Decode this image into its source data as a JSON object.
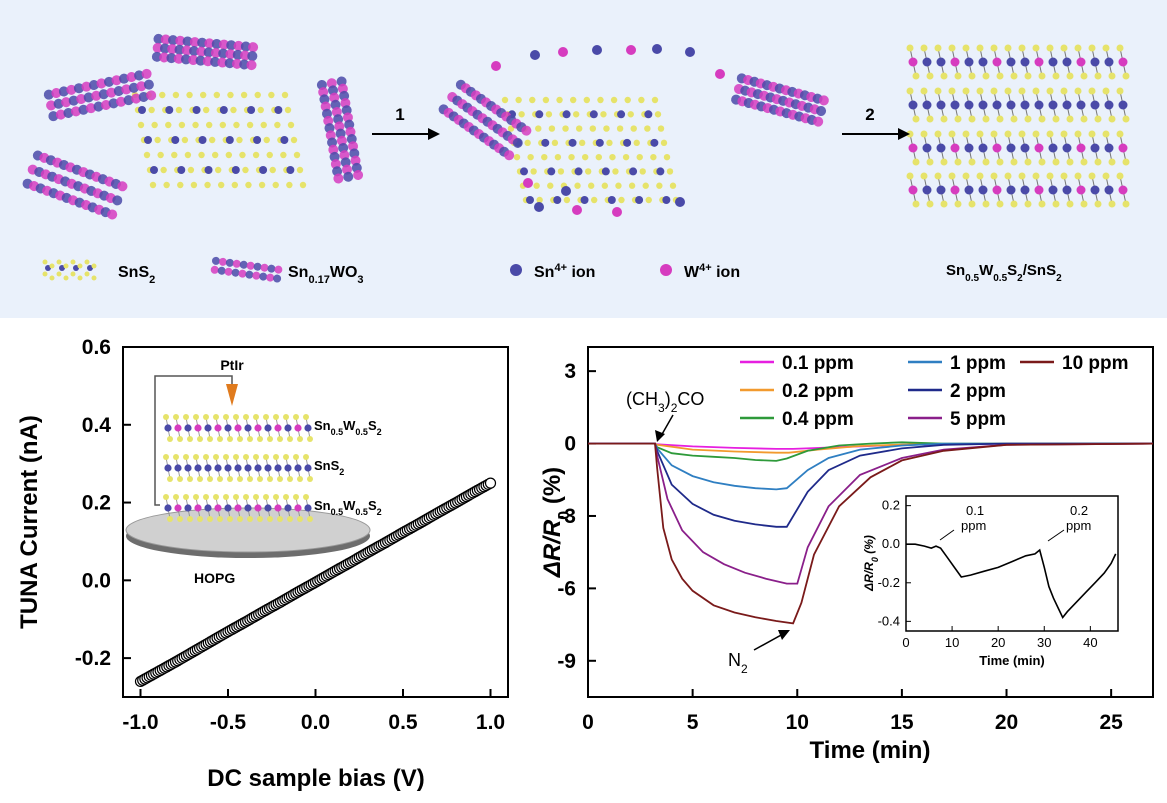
{
  "schematic": {
    "step1": "1",
    "step2": "2",
    "legend_sns2": "SnS2",
    "legend_snwo": "Sn0.17WO3",
    "legend_sn_ion": "Sn4+ ion",
    "legend_w_ion": "W4+ ion",
    "legend_product": "Sn0.5W0.5S2/SnS2",
    "colors": {
      "yellow": "#e6e36a",
      "blue": "#4a4aa8",
      "magenta": "#d63cbf",
      "grey": "#8a8a8a"
    }
  },
  "chart_data": [
    {
      "type": "scatter",
      "title": "",
      "xlabel": "DC sample bias (V)",
      "ylabel": "TUNA Current  (nA)",
      "xlim": [
        -1.1,
        1.1
      ],
      "ylim": [
        -0.3,
        0.6
      ],
      "xticks": [
        "-1.0",
        "-0.5",
        "0.0",
        "0.5",
        "1.0"
      ],
      "yticks": [
        "-0.2",
        "0.0",
        "0.2",
        "0.4",
        "0.6"
      ],
      "series": [
        {
          "x": [
            -1.0,
            -0.9,
            -0.8,
            -0.7,
            -0.6,
            -0.5,
            -0.4,
            -0.3,
            -0.2,
            -0.1,
            0.0,
            0.1,
            0.2,
            0.3,
            0.4,
            0.5,
            0.6,
            0.7,
            0.8,
            0.9,
            1.0
          ],
          "y": [
            -0.26,
            -0.235,
            -0.21,
            -0.184,
            -0.158,
            -0.132,
            -0.107,
            -0.081,
            -0.056,
            -0.03,
            -0.005,
            0.021,
            0.046,
            0.072,
            0.097,
            0.123,
            0.148,
            0.174,
            0.199,
            0.225,
            0.25
          ]
        }
      ],
      "inset": {
        "tip_label": "PtIr",
        "layer_top": "Sn0.5W0.5S2",
        "layer_mid": "SnS2",
        "layer_bot": "Sn0.5W0.5S2",
        "substrate": "HOPG"
      }
    },
    {
      "type": "line",
      "title": "",
      "xlabel": "Time (min)",
      "ylabel": "ΔR/R0 (%)",
      "xlim": [
        0,
        27
      ],
      "ylim": [
        -10.5,
        4
      ],
      "xticks": [
        "0",
        "5",
        "10",
        "15",
        "20",
        "25"
      ],
      "yticks": [
        "3",
        "0",
        "-3",
        "-6",
        "-9"
      ],
      "annotation_gas": "(CH3)2CO",
      "annotation_off": "N2",
      "series": [
        {
          "name": "0.1 ppm",
          "color": "#e61fe0",
          "x": [
            0,
            3.2,
            3.3,
            5,
            7,
            9,
            9.8,
            12,
            15,
            20,
            27
          ],
          "y": [
            0,
            0,
            -0.03,
            -0.12,
            -0.18,
            -0.22,
            -0.22,
            -0.15,
            -0.05,
            0,
            0
          ]
        },
        {
          "name": "0.2 ppm",
          "color": "#f29a2e",
          "x": [
            0,
            3.2,
            3.3,
            5,
            7,
            9,
            9.6,
            11,
            13,
            16,
            20,
            27
          ],
          "y": [
            0,
            0,
            -0.05,
            -0.25,
            -0.33,
            -0.38,
            -0.38,
            -0.25,
            -0.1,
            -0.02,
            0,
            0
          ]
        },
        {
          "name": "0.4 ppm",
          "color": "#2e9a3a",
          "x": [
            0,
            3.2,
            3.3,
            4,
            5,
            6,
            7,
            8,
            9,
            9.5,
            10.5,
            12,
            13.5,
            15,
            17,
            20,
            27
          ],
          "y": [
            0,
            0,
            -0.15,
            -0.4,
            -0.5,
            -0.55,
            -0.6,
            -0.68,
            -0.72,
            -0.62,
            -0.3,
            -0.08,
            0,
            0.05,
            0,
            0,
            0
          ]
        },
        {
          "name": "1 ppm",
          "color": "#2f7fc2",
          "x": [
            0,
            3.2,
            3.3,
            4,
            5,
            6,
            7,
            8,
            9,
            9.5,
            10.5,
            11.5,
            13,
            15,
            17,
            20,
            27
          ],
          "y": [
            0,
            0,
            -0.2,
            -0.9,
            -1.35,
            -1.6,
            -1.75,
            -1.85,
            -1.9,
            -1.85,
            -1.1,
            -0.6,
            -0.25,
            -0.08,
            0,
            0,
            0
          ]
        },
        {
          "name": "2 ppm",
          "color": "#1f2a8a",
          "x": [
            0,
            3.2,
            3.3,
            4,
            5,
            6,
            7,
            8,
            9,
            9.5,
            10.5,
            11.5,
            13,
            15,
            17,
            20,
            27
          ],
          "y": [
            0,
            0,
            -0.3,
            -1.7,
            -2.5,
            -2.95,
            -3.2,
            -3.35,
            -3.45,
            -3.45,
            -2.0,
            -1.1,
            -0.5,
            -0.2,
            -0.05,
            0,
            0
          ]
        },
        {
          "name": "5 ppm",
          "color": "#8a1f8a",
          "x": [
            0,
            3.2,
            3.3,
            3.8,
            4.5,
            5.5,
            6.5,
            7.5,
            8.5,
            9.5,
            10,
            10.5,
            11.5,
            13,
            15,
            17,
            20,
            27
          ],
          "y": [
            0,
            0,
            -0.5,
            -2.3,
            -3.6,
            -4.5,
            -5.0,
            -5.35,
            -5.6,
            -5.8,
            -5.8,
            -4.3,
            -2.6,
            -1.3,
            -0.6,
            -0.25,
            -0.05,
            0
          ]
        },
        {
          "name": "10 ppm",
          "color": "#7a1a1a",
          "x": [
            0,
            3.2,
            3.3,
            3.6,
            4,
            4.5,
            5,
            6,
            7,
            8,
            9,
            9.8,
            10.2,
            10.8,
            12,
            13.5,
            15,
            17,
            20,
            27
          ],
          "y": [
            0,
            0,
            -1.0,
            -3.5,
            -4.8,
            -5.6,
            -6.1,
            -6.7,
            -7.0,
            -7.2,
            -7.35,
            -7.45,
            -6.6,
            -4.6,
            -2.6,
            -1.4,
            -0.7,
            -0.3,
            -0.05,
            0
          ]
        }
      ],
      "inset": {
        "type": "line",
        "xlabel": "Time (min)",
        "ylabel": "ΔR/R0 (%)",
        "xlim": [
          0,
          46
        ],
        "ylim": [
          -0.45,
          0.25
        ],
        "xticks": [
          "0",
          "10",
          "20",
          "30",
          "40"
        ],
        "yticks": [
          "0.2",
          "0.0",
          "-0.2",
          "-0.4"
        ],
        "label_a_value": "0.1",
        "label_a_unit": "ppm",
        "label_b_value": "0.2",
        "label_b_unit": "ppm",
        "x": [
          0,
          2,
          4,
          5.5,
          6.5,
          7.5,
          9,
          10.5,
          12,
          14,
          17,
          20,
          23,
          26,
          28,
          29,
          30,
          31,
          32,
          33,
          34,
          35,
          37,
          39,
          41,
          43,
          44.5,
          45.5
        ],
        "y": [
          0,
          0,
          -0.01,
          -0.02,
          -0.01,
          -0.02,
          -0.07,
          -0.12,
          -0.17,
          -0.16,
          -0.14,
          -0.12,
          -0.09,
          -0.06,
          -0.05,
          -0.03,
          -0.12,
          -0.22,
          -0.28,
          -0.33,
          -0.38,
          -0.35,
          -0.3,
          -0.25,
          -0.2,
          -0.15,
          -0.1,
          -0.05
        ]
      }
    }
  ]
}
